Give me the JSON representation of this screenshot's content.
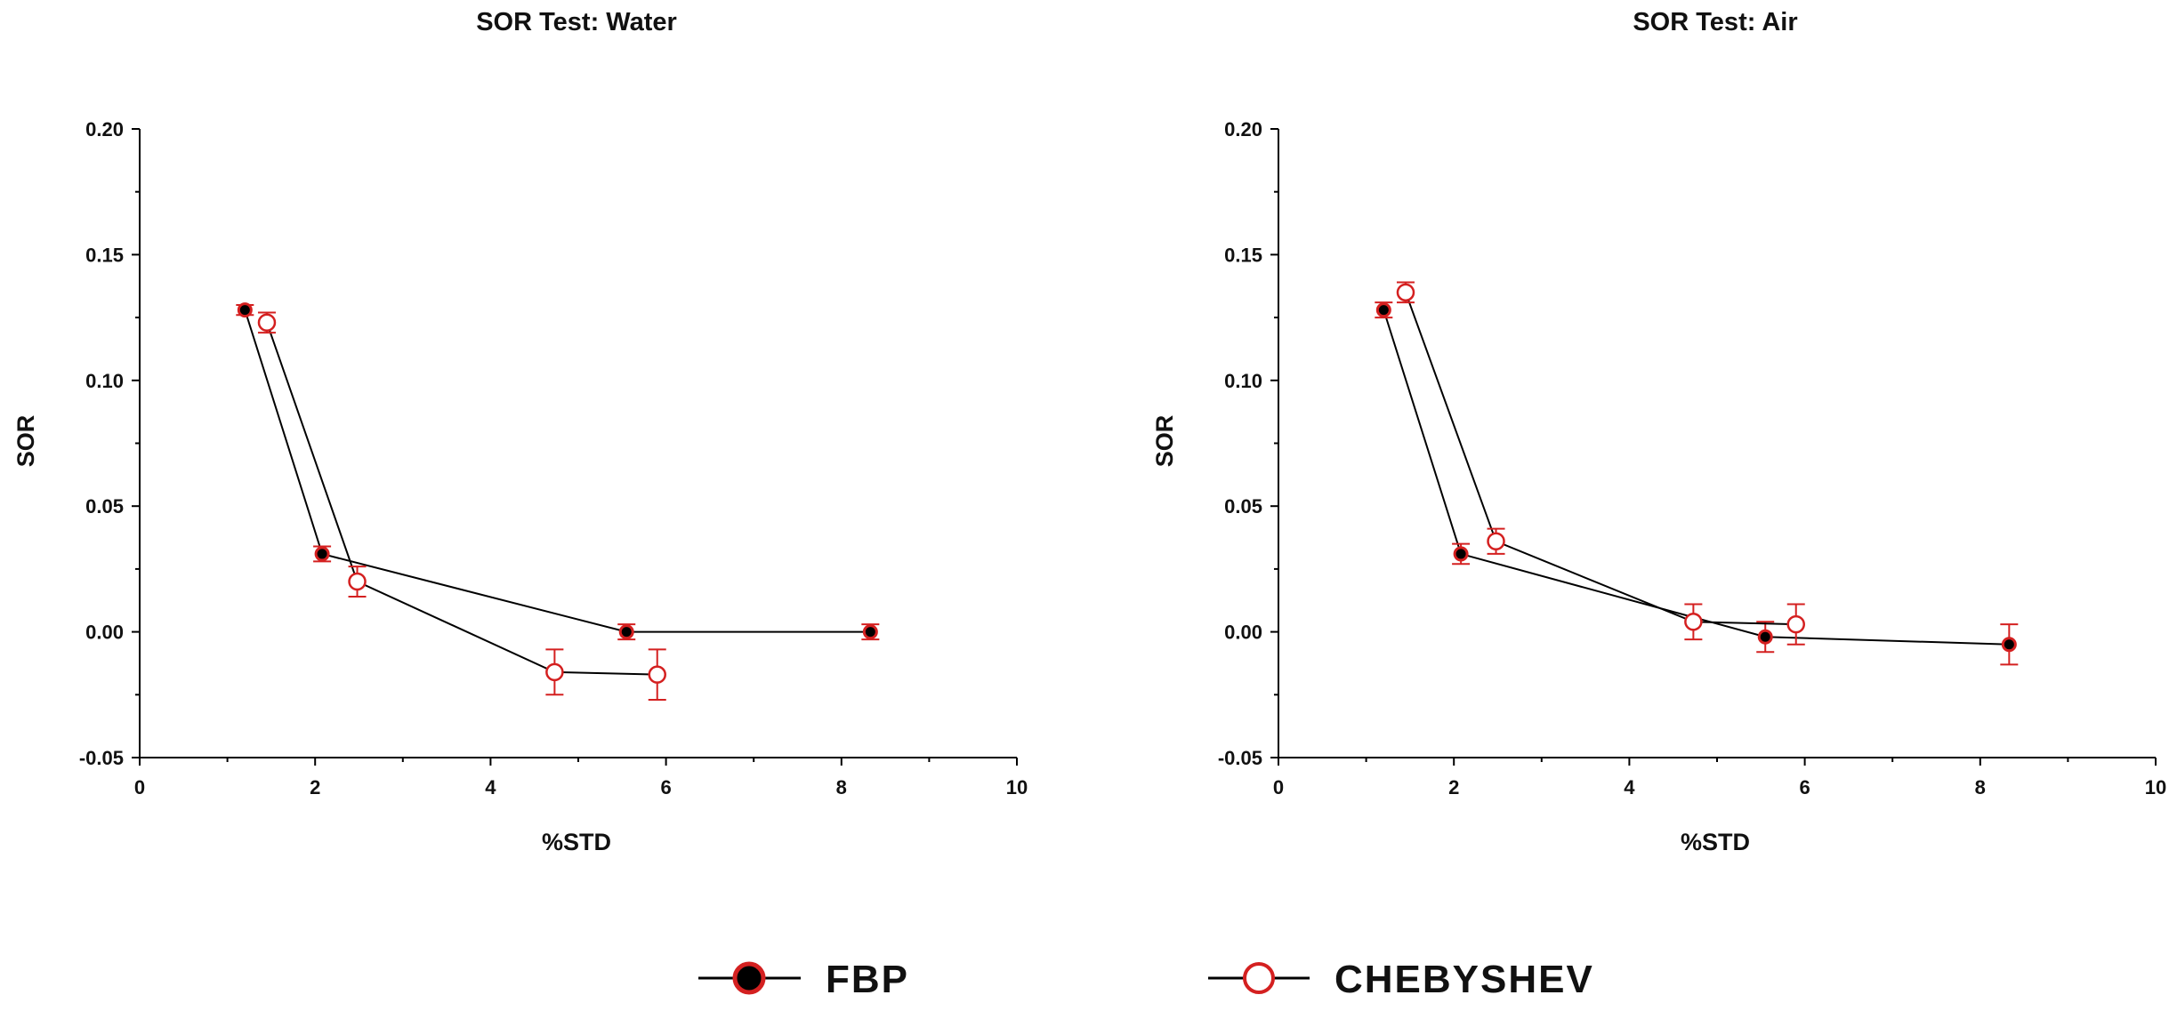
{
  "chart_data": [
    {
      "type": "line",
      "title": "SOR Test: Water",
      "xlabel": "%STD",
      "ylabel": "SOR",
      "xlim": [
        0,
        10
      ],
      "ylim": [
        -0.05,
        0.2
      ],
      "xticks": [
        "0",
        "2",
        "4",
        "6",
        "8",
        "10"
      ],
      "yticks": [
        "-0.05",
        "0.00",
        "0.05",
        "0.10",
        "0.15",
        "0.20"
      ],
      "series": [
        {
          "name": "FBP",
          "marker": "filled-circle",
          "x": [
            1.2,
            2.08,
            5.55,
            8.33
          ],
          "y": [
            0.128,
            0.031,
            0.0,
            0.0
          ],
          "err": [
            0.002,
            0.003,
            0.003,
            0.003
          ]
        },
        {
          "name": "CHEBYSHEV",
          "marker": "open-circle",
          "x": [
            1.45,
            2.48,
            4.73,
            5.9
          ],
          "y": [
            0.123,
            0.02,
            -0.016,
            -0.017
          ],
          "err": [
            0.004,
            0.006,
            0.009,
            0.01
          ]
        }
      ]
    },
    {
      "type": "line",
      "title": "SOR Test: Air",
      "xlabel": "%STD",
      "ylabel": "SOR",
      "xlim": [
        0,
        10
      ],
      "ylim": [
        -0.05,
        0.2
      ],
      "xticks": [
        "0",
        "2",
        "4",
        "6",
        "8",
        "10"
      ],
      "yticks": [
        "-0.05",
        "0.00",
        "0.05",
        "0.10",
        "0.15",
        "0.20"
      ],
      "series": [
        {
          "name": "FBP",
          "marker": "filled-circle",
          "x": [
            1.2,
            2.08,
            5.55,
            8.33
          ],
          "y": [
            0.128,
            0.031,
            -0.002,
            -0.005
          ],
          "err": [
            0.003,
            0.004,
            0.006,
            0.008
          ]
        },
        {
          "name": "CHEBYSHEV",
          "marker": "open-circle",
          "x": [
            1.45,
            2.48,
            4.73,
            5.9
          ],
          "y": [
            0.135,
            0.036,
            0.004,
            0.003
          ],
          "err": [
            0.004,
            0.005,
            0.007,
            0.008
          ]
        }
      ]
    }
  ],
  "legend": {
    "items": [
      {
        "label": "FBP",
        "marker": "filled-circle"
      },
      {
        "label": "CHEBYSHEV",
        "marker": "open-circle"
      }
    ]
  },
  "colors": {
    "line": "#000000",
    "marker_edge": "#d42020",
    "marker_fill_fbp": "#000000",
    "marker_fill_cheb": "#ffffff",
    "error_bar": "#d42020",
    "axis": "#000000"
  }
}
